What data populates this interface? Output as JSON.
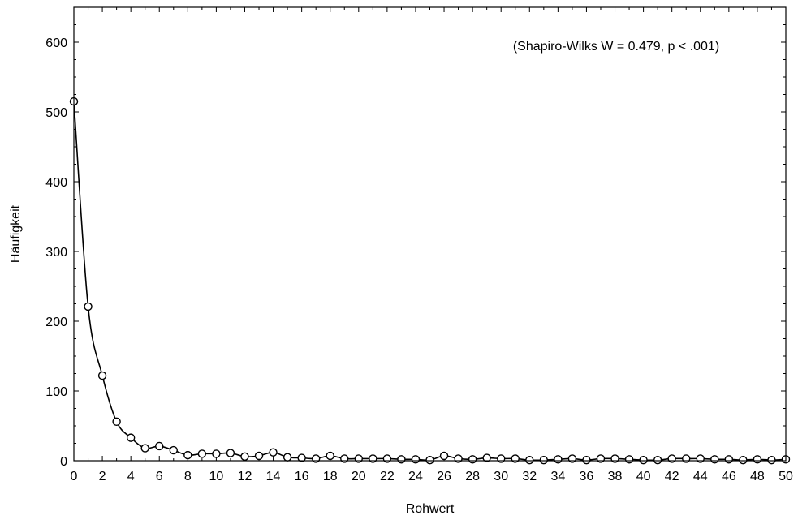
{
  "chart_data": {
    "type": "line",
    "title": "",
    "xlabel": "Rohwert",
    "ylabel": "Häufigkeit",
    "xlim": [
      0,
      50
    ],
    "ylim": [
      0,
      650
    ],
    "x_ticks": [
      0,
      2,
      4,
      6,
      8,
      10,
      12,
      14,
      16,
      18,
      20,
      22,
      24,
      26,
      28,
      30,
      32,
      34,
      36,
      38,
      40,
      42,
      44,
      46,
      48,
      50
    ],
    "y_ticks": [
      0,
      100,
      200,
      300,
      400,
      500,
      600
    ],
    "grid": false,
    "legend": "none",
    "annotation": "(Shapiro-Wilks W = 0.479, p < .001)",
    "series": [
      {
        "x": [
          0,
          1,
          2,
          3,
          4,
          5,
          6,
          7,
          8,
          9,
          10,
          11,
          12,
          13,
          14,
          15,
          16,
          17,
          18,
          19,
          20,
          21,
          22,
          23,
          24,
          25,
          26,
          27,
          28,
          29,
          30,
          31,
          32,
          33,
          34,
          35,
          36,
          37,
          38,
          39,
          40,
          41,
          42,
          43,
          44,
          45,
          46,
          47,
          48,
          49,
          50
        ],
        "values": [
          515,
          221,
          122,
          56,
          33,
          18,
          21,
          15,
          8,
          10,
          10,
          11,
          6,
          7,
          12,
          5,
          4,
          3,
          7,
          3,
          3,
          3,
          3,
          2,
          2,
          1,
          7,
          3,
          2,
          4,
          3,
          3,
          1,
          1,
          2,
          3,
          1,
          3,
          3,
          2,
          1,
          1,
          3,
          3,
          3,
          2,
          2,
          1,
          2,
          1,
          2
        ]
      }
    ],
    "colors": {
      "line": "#000000",
      "marker_fill": "#ffffff",
      "frame": "#000000"
    }
  }
}
